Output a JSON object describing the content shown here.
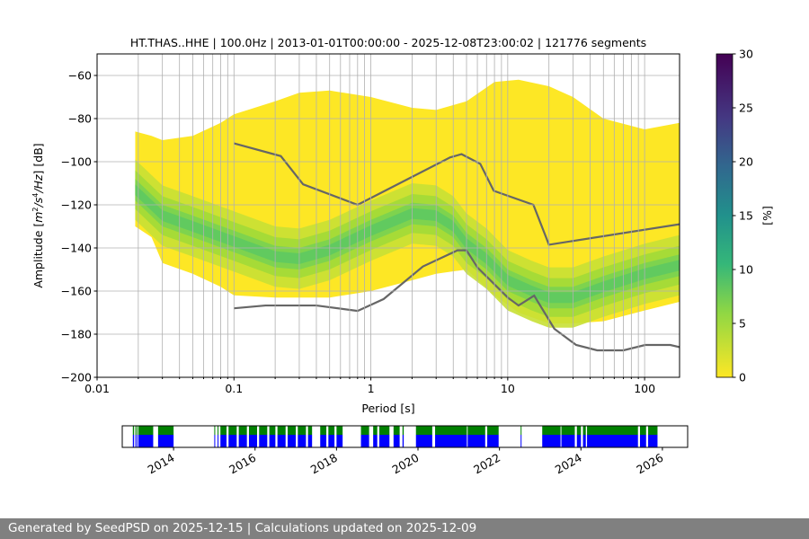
{
  "chart_data": {
    "type": "heatmap",
    "title": "HT.THAS..HHE | 100.0Hz | 2013-01-01T00:00:00 - 2025-12-08T23:00:02 | 121776 segments",
    "xlabel": "Period [s]",
    "ylabel": "Amplitude [m²/s⁴/Hz] [dB]",
    "xscale": "log",
    "xlim": [
      0.01,
      180
    ],
    "ylim": [
      -200,
      -50
    ],
    "xticks": [
      {
        "v": 0.01,
        "label": "0.01"
      },
      {
        "v": 0.1,
        "label": "0.1"
      },
      {
        "v": 1,
        "label": "1"
      },
      {
        "v": 10,
        "label": "10"
      },
      {
        "v": 100,
        "label": "100"
      }
    ],
    "yticks": [
      -200,
      -180,
      -160,
      -140,
      -120,
      -100,
      -80,
      -60
    ],
    "grid": true,
    "envelope": {
      "period": [
        0.019,
        0.025,
        0.03,
        0.05,
        0.08,
        0.1,
        0.2,
        0.3,
        0.5,
        1,
        2,
        3,
        5,
        8,
        12,
        20,
        30,
        50,
        100,
        180
      ],
      "upper": [
        -86,
        -88,
        -90,
        -88,
        -82,
        -78,
        -72,
        -68,
        -67,
        -70,
        -75,
        -76,
        -72,
        -63,
        -62,
        -65,
        -70,
        -80,
        -85,
        -82
      ],
      "lower": [
        -130,
        -135,
        -147,
        -152,
        -158,
        -162,
        -163,
        -163,
        -163,
        -160,
        -155,
        -152,
        -150,
        -162,
        -170,
        -175,
        -175,
        -174,
        -169,
        -165
      ]
    },
    "mode": {
      "period": [
        0.019,
        0.03,
        0.05,
        0.1,
        0.2,
        0.3,
        0.5,
        1,
        2,
        3,
        4,
        5,
        7,
        10,
        15,
        20,
        30,
        50,
        100,
        180
      ],
      "db": [
        -113,
        -125,
        -130,
        -137,
        -144,
        -145,
        -141,
        -132,
        -124,
        -125,
        -130,
        -138,
        -145,
        -155,
        -160,
        -163,
        -163,
        -158,
        -152,
        -148
      ]
    },
    "series": [
      {
        "name": "NHNM",
        "period": [
          0.1,
          0.22,
          0.32,
          0.8,
          3.8,
          4.6,
          6.3,
          7.9,
          15.4,
          20,
          180
        ],
        "db": [
          -91.5,
          -97.4,
          -110.5,
          -120,
          -98,
          -96.5,
          -101,
          -113.5,
          -120,
          -138.5,
          -129
        ]
      },
      {
        "name": "NLNM",
        "period": [
          0.1,
          0.17,
          0.4,
          0.8,
          1.24,
          2.4,
          4.3,
          5,
          6,
          10,
          12,
          15.6,
          21.9,
          31.6,
          45,
          70,
          101,
          154,
          180
        ],
        "db": [
          -168,
          -166.7,
          -166.7,
          -169.2,
          -163.7,
          -148.6,
          -141.1,
          -141.1,
          -149,
          -163,
          -166.7,
          -162.1,
          -177.5,
          -185,
          -187.5,
          -187.5,
          -185,
          -185,
          -186
        ]
      }
    ],
    "colorbar": {
      "label": "[%]",
      "min": 0,
      "max": 30,
      "ticks": [
        0,
        5,
        10,
        15,
        20,
        25,
        30
      ],
      "cmap": "viridis_r"
    },
    "timeline": {
      "xlim": [
        2012.74,
        2026.62
      ],
      "ticks": [
        "2014",
        "2016",
        "2018",
        "2020",
        "2022",
        "2024",
        "2026"
      ],
      "tick_years": [
        2014,
        2016,
        2018,
        2020,
        2022,
        2024,
        2026
      ],
      "available_color": "#008000",
      "used_color": "#0000ff",
      "intervals": [
        [
          2013.0,
          2013.03
        ],
        [
          2013.06,
          2013.08
        ],
        [
          2013.1,
          2013.12
        ],
        [
          2013.14,
          2013.5
        ],
        [
          2013.62,
          2014.0
        ],
        [
          2015.0,
          2015.02
        ],
        [
          2015.08,
          2015.1
        ],
        [
          2015.15,
          2015.3
        ],
        [
          2015.35,
          2015.55
        ],
        [
          2015.6,
          2015.8
        ],
        [
          2015.85,
          2016.05
        ],
        [
          2016.1,
          2016.3
        ],
        [
          2016.35,
          2016.5
        ],
        [
          2016.55,
          2016.75
        ],
        [
          2016.8,
          2017.0
        ],
        [
          2017.05,
          2017.25
        ],
        [
          2017.3,
          2017.4
        ],
        [
          2017.6,
          2017.75
        ],
        [
          2017.8,
          2017.95
        ],
        [
          2018.0,
          2018.15
        ],
        [
          2018.6,
          2018.8
        ],
        [
          2018.9,
          2019.0
        ],
        [
          2019.05,
          2019.3
        ],
        [
          2019.4,
          2019.55
        ],
        [
          2019.62,
          2019.65
        ],
        [
          2019.95,
          2020.35
        ],
        [
          2020.42,
          2021.2
        ],
        [
          2021.22,
          2021.65
        ],
        [
          2021.7,
          2021.98
        ],
        [
          2022.52,
          2022.53
        ],
        [
          2023.05,
          2023.5
        ],
        [
          2023.52,
          2023.85
        ],
        [
          2023.9,
          2024.0
        ],
        [
          2024.05,
          2024.12
        ],
        [
          2024.15,
          2025.4
        ],
        [
          2025.45,
          2025.6
        ],
        [
          2025.65,
          2025.88
        ]
      ]
    }
  },
  "footer": "Generated by SeedPSD on 2025-12-15 | Calculations updated on 2025-12-09"
}
